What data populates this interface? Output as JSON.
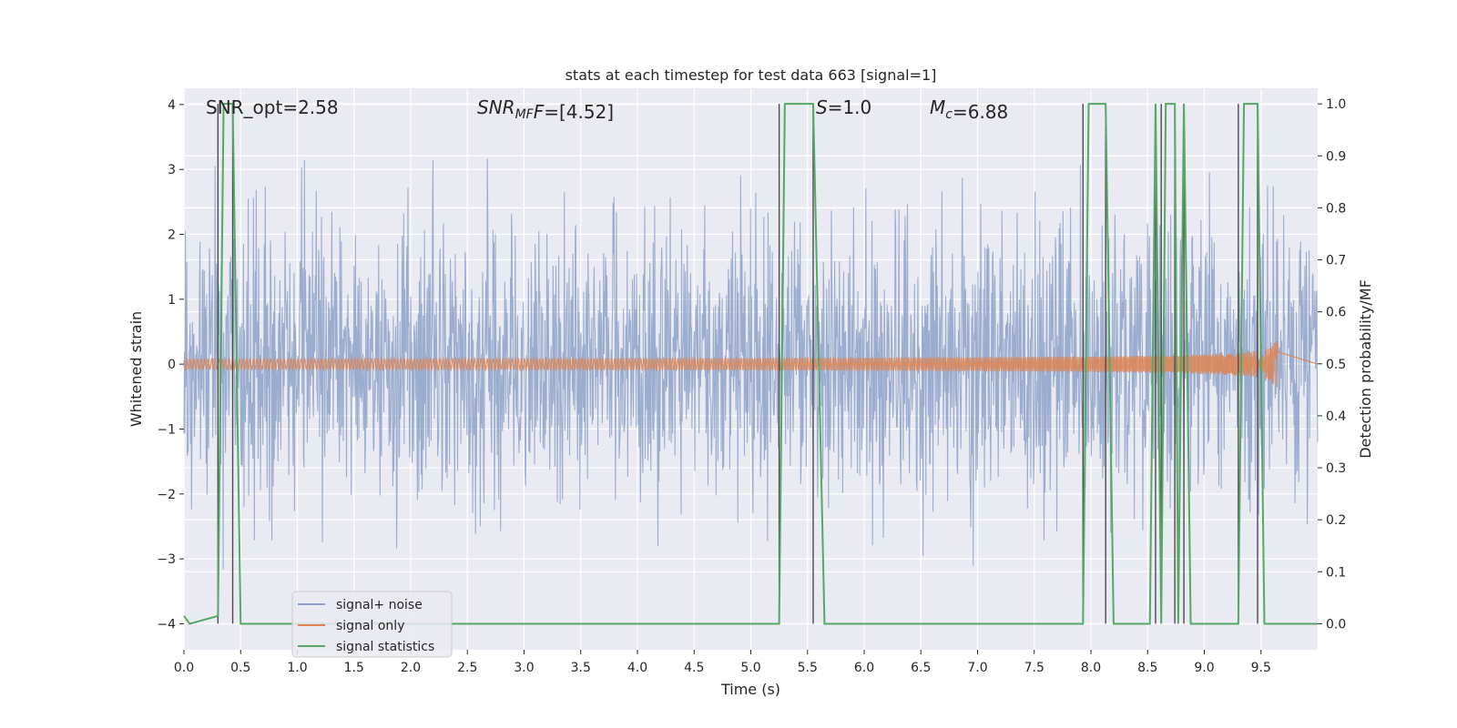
{
  "chart_data": {
    "type": "line",
    "title": "stats at each timestep for test data 663 [signal=1]",
    "xlabel": "Time (s)",
    "ylabel_left": "Whitened strain",
    "ylabel_right": "Detection probability/MF",
    "xlim": [
      0.0,
      10.0
    ],
    "ylim_left": [
      -4.4,
      4.25
    ],
    "ylim_right": [
      -0.05,
      1.03
    ],
    "x_ticks": [
      "0.0",
      "0.5",
      "1.0",
      "1.5",
      "2.0",
      "2.5",
      "3.0",
      "3.5",
      "4.0",
      "4.5",
      "5.0",
      "5.5",
      "6.0",
      "6.5",
      "7.0",
      "7.5",
      "8.0",
      "8.5",
      "9.0",
      "9.5"
    ],
    "y_left_ticks": [
      "4",
      "3",
      "2",
      "1",
      "0",
      "−1",
      "−2",
      "−3",
      "−4"
    ],
    "y_right_ticks": [
      "1.0",
      "0.9",
      "0.8",
      "0.7",
      "0.6",
      "0.5",
      "0.4",
      "0.3",
      "0.2",
      "0.1",
      "0.0"
    ],
    "grid": true,
    "legend_placement": "lower-left",
    "annotations": [
      {
        "text": "SNR_opt=2.58"
      },
      {
        "parts": [
          {
            "t": "SNR",
            "italic": true
          },
          {
            "t": "MF",
            "italic": true,
            "sub": true
          },
          {
            "t": "F",
            "italic": true
          },
          {
            "t": "=[4.52]"
          }
        ]
      },
      {
        "parts": [
          {
            "t": "S",
            "italic": true
          },
          {
            "t": "=1.0"
          }
        ]
      },
      {
        "parts": [
          {
            "t": "M",
            "italic": true
          },
          {
            "t": "c",
            "italic": true,
            "sub": true
          },
          {
            "t": "=6.88"
          }
        ]
      }
    ],
    "series": [
      {
        "name": "signal+ noise",
        "color": "#8da2c9",
        "kind": "noise",
        "band_sigma": 1.0,
        "peak_range": [
          -4.0,
          4.0
        ]
      },
      {
        "name": "signal only",
        "color": "#dd8452",
        "kind": "chirp",
        "t_merge": 9.65,
        "peak_amplitude": 0.55
      },
      {
        "name": "signal statistics",
        "color": "#55a868",
        "kind": "step",
        "x": [
          0.0,
          0.05,
          0.3,
          0.35,
          0.43,
          0.5,
          0.56,
          5.25,
          5.3,
          5.55,
          5.65,
          7.93,
          7.98,
          8.13,
          8.2,
          8.52,
          8.57,
          8.62,
          8.66,
          8.74,
          8.77,
          8.82,
          8.88,
          9.3,
          9.35,
          9.47,
          9.53,
          10.0
        ],
        "y": [
          0.015,
          0.0,
          0.015,
          1.0,
          1.0,
          0.0,
          0.0,
          0.0,
          1.0,
          1.0,
          0.0,
          0.0,
          1.0,
          1.0,
          0.0,
          0.0,
          1.0,
          0.0,
          1.0,
          1.0,
          0.0,
          1.0,
          0.0,
          0.0,
          1.0,
          1.0,
          0.0,
          0.0
        ]
      },
      {
        "name": "",
        "color": "#4c4c4c",
        "kind": "vlines",
        "x": [
          0.3,
          0.43,
          5.25,
          5.55,
          7.93,
          8.13,
          8.57,
          8.62,
          8.74,
          8.82,
          9.3,
          9.47
        ],
        "y_range": [
          0.0,
          1.0
        ]
      }
    ]
  }
}
